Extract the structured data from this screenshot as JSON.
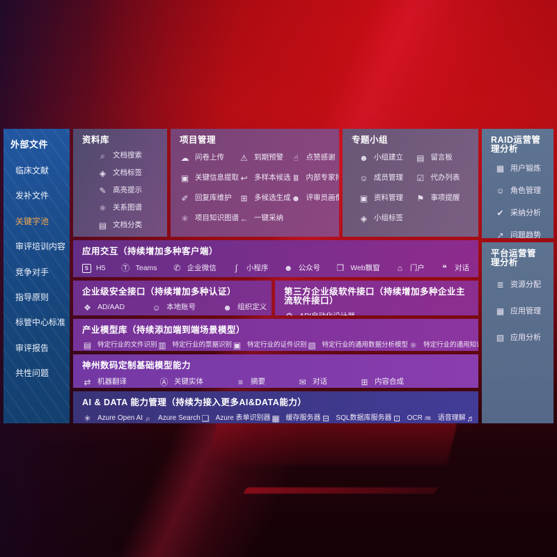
{
  "colors": {
    "highlight": "#f0a64d"
  },
  "icons": {
    "doc-search": "⌕",
    "doc-tag": "◈",
    "highlight-pen": "✎",
    "relation-graph": "⚛",
    "doc-classify": "▤",
    "cloud-upload": "☁",
    "alarm": "⚠",
    "thumbs-up": "☝",
    "info-extract": "▣",
    "multi-sample": "↩",
    "expert-rank": "Ⅲ",
    "reply-maintain": "✐",
    "multi-generate": "⊞",
    "reviewer-portrait": "☻",
    "project-graph": "⚛",
    "one-click-adopt": "←",
    "group-create": "☻",
    "bbs": "▤",
    "member-manage": "☺",
    "todo-list": "☑",
    "data-manage": "▣",
    "reminder": "⚑",
    "group-tag": "◈",
    "user-profile": "▦",
    "role-manage": "☺",
    "adoption-analysis": "✔",
    "issue-trend": "↗",
    "resource-alloc": "≣",
    "app-manage": "▦",
    "app-analysis": "▧",
    "h5": "5",
    "teams": "Ⓣ",
    "wechat-work": "✆",
    "miniprogram": "∫",
    "official-account": "☻",
    "web-popup": "❐",
    "portal": "⌂",
    "chat": "❝",
    "ad-aad": "❖",
    "local-account": "☺",
    "org-define": "☻",
    "gear": "⚙",
    "file-recog": "▤",
    "invoice-recog": "▥",
    "id-recog": "▣",
    "data-analysis-model": "▧",
    "knowledge-graph-model": "⚛",
    "machine-translation": "⇄",
    "key-entity": "Ⓐ",
    "summary": "≡",
    "dialogue": "✉",
    "content-compose": "⊞",
    "azure-openai": "✳",
    "azure-search": "⌕",
    "azure-form": "❏",
    "cache-server": "▦",
    "sql-db": "⊟",
    "ocr": "⊡",
    "speech": "♒",
    "tts": "♬"
  },
  "sidebar_left": {
    "title": "外部文件",
    "items": [
      {
        "label": "临床文献"
      },
      {
        "label": "发补文件"
      },
      {
        "label": "关键字池",
        "color": "#f0a64d"
      },
      {
        "label": "审评培训内容"
      },
      {
        "label": "竞争对手"
      },
      {
        "label": "指导原则"
      },
      {
        "label": "标管中心标准"
      },
      {
        "label": "审评报告"
      },
      {
        "label": "共性问题"
      }
    ]
  },
  "boxes": {
    "library": {
      "title": "资料库",
      "items": [
        {
          "icon": "doc-search",
          "label": "文档搜索"
        },
        {
          "icon": "doc-tag",
          "label": "文档标签"
        },
        {
          "icon": "highlight-pen",
          "label": "高亮提示"
        },
        {
          "icon": "relation-graph",
          "label": "关系图谱"
        },
        {
          "icon": "doc-classify",
          "label": "文档分类"
        }
      ]
    },
    "project": {
      "title": "项目管理",
      "items": [
        {
          "icon": "cloud-upload",
          "label": "问卷上传"
        },
        {
          "icon": "alarm",
          "label": "到期预警"
        },
        {
          "icon": "thumbs-up",
          "label": "点赞感谢"
        },
        {
          "icon": "info-extract",
          "label": "关键信息提取"
        },
        {
          "icon": "multi-sample",
          "label": "多样本候选"
        },
        {
          "icon": "expert-rank",
          "label": "内部专家排名"
        },
        {
          "icon": "reply-maintain",
          "label": "回复库维护"
        },
        {
          "icon": "multi-generate",
          "label": "多候选生成"
        },
        {
          "icon": "reviewer-portrait",
          "label": "评审员画像"
        },
        {
          "icon": "project-graph",
          "label": "项目知识图谱"
        },
        {
          "icon": "one-click-adopt",
          "label": "一键采纳"
        }
      ]
    },
    "groups": {
      "title": "专题小组",
      "items": [
        {
          "icon": "group-create",
          "label": "小组建立"
        },
        {
          "icon": "bbs",
          "label": "留言板"
        },
        {
          "icon": "member-manage",
          "label": "成员管理"
        },
        {
          "icon": "todo-list",
          "label": "代办列表"
        },
        {
          "icon": "data-manage",
          "label": "资料管理"
        },
        {
          "icon": "reminder",
          "label": "事项提醒"
        },
        {
          "icon": "group-tag",
          "label": "小组标签"
        }
      ]
    },
    "interaction": {
      "title": "应用交互（持续增加多种客户端）",
      "items": [
        {
          "icon": "h5",
          "label": "H5"
        },
        {
          "icon": "teams",
          "label": "Teams"
        },
        {
          "icon": "wechat-work",
          "label": "企业微信"
        },
        {
          "icon": "miniprogram",
          "label": "小程序"
        },
        {
          "icon": "official-account",
          "label": "公众号"
        },
        {
          "icon": "web-popup",
          "label": "Web飘窗"
        },
        {
          "icon": "portal",
          "label": "门户"
        },
        {
          "icon": "chat",
          "label": "对话"
        }
      ]
    },
    "security": {
      "title": "企业级安全接口（持续增加多种认证）",
      "items": [
        {
          "icon": "ad-aad",
          "label": "AD/AAD"
        },
        {
          "icon": "local-account",
          "label": "本地账号"
        },
        {
          "icon": "org-define",
          "label": "组织定义"
        }
      ]
    },
    "third_party": {
      "title": "第三方企业级软件接口（持续增加多种企业主流软件接口）",
      "items": [
        {
          "icon": "gear",
          "label": "API自动化设计器"
        }
      ]
    },
    "industry_models": {
      "title": "产业模型库（持续添加端到端场景模型）",
      "items": [
        {
          "icon": "file-recog",
          "label": "特定行业的文件识别"
        },
        {
          "icon": "invoice-recog",
          "label": "特定行业的票据识别"
        },
        {
          "icon": "id-recog",
          "label": "特定行业的证件识别"
        },
        {
          "icon": "data-analysis-model",
          "label": "特定行业的通用数据分析模型"
        },
        {
          "icon": "knowledge-graph-model",
          "label": "特定行业的通用知识图谱模型"
        }
      ]
    },
    "base_models": {
      "title": "神州数码定制基础模型能力",
      "items": [
        {
          "icon": "machine-translation",
          "label": "机器翻译"
        },
        {
          "icon": "key-entity",
          "label": "关键实体"
        },
        {
          "icon": "summary",
          "label": "摘要"
        },
        {
          "icon": "dialogue",
          "label": "对话"
        },
        {
          "icon": "content-compose",
          "label": "内容合成"
        }
      ]
    },
    "ai_data": {
      "title": "AI & DATA 能力管理（持续为接入更多AI&DATA能力）",
      "items": [
        {
          "icon": "azure-openai",
          "label": "Azure Open AI"
        },
        {
          "icon": "azure-search",
          "label": "Azure Search"
        },
        {
          "icon": "azure-form",
          "label": "Azure 表单识别器"
        },
        {
          "icon": "cache-server",
          "label": "缓存服务器"
        },
        {
          "icon": "sql-db",
          "label": "SQL数据库服务器"
        },
        {
          "icon": "ocr",
          "label": "OCR"
        },
        {
          "icon": "speech",
          "label": "语音理解"
        },
        {
          "icon": "tts",
          "label": "TTS"
        }
      ]
    }
  },
  "sidebar_right": {
    "raid": {
      "title": "RAID运营管理分析",
      "items": [
        {
          "icon": "user-profile",
          "label": "用户锻炼"
        },
        {
          "icon": "role-manage",
          "label": "角色管理"
        },
        {
          "icon": "adoption-analysis",
          "label": "采纳分析"
        },
        {
          "icon": "issue-trend",
          "label": "问题趋势"
        }
      ]
    },
    "platform": {
      "title": "平台运营管理分析",
      "items": [
        {
          "icon": "resource-alloc",
          "label": "资源分配"
        },
        {
          "icon": "app-manage",
          "label": "应用管理"
        },
        {
          "icon": "app-analysis",
          "label": "应用分析"
        }
      ]
    }
  }
}
